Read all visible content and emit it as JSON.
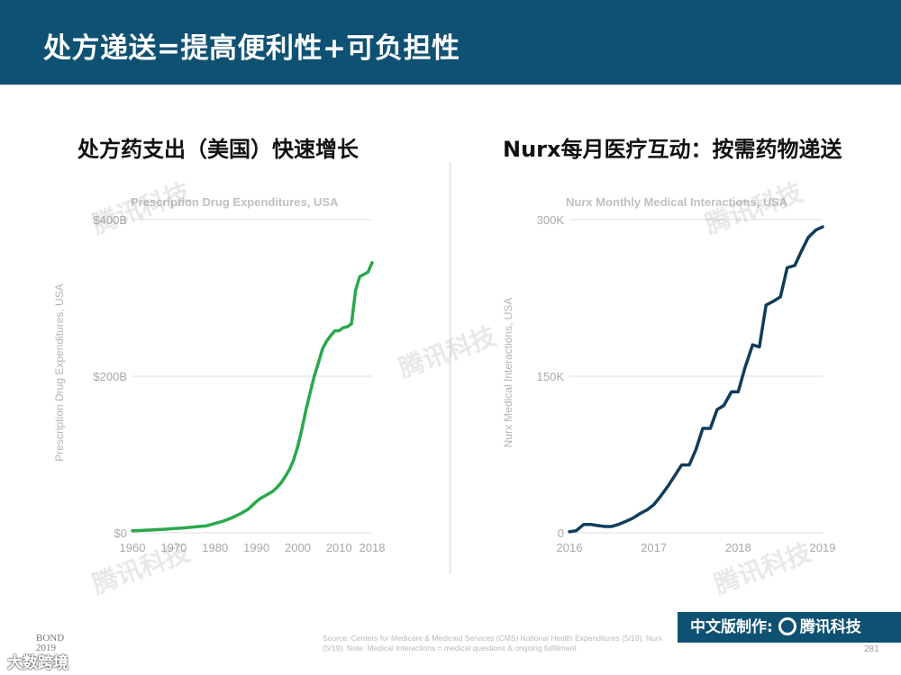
{
  "header": {
    "title": "处方递送=提高便利性+可负担性"
  },
  "panels": {
    "left_title": "处方药支出（美国）快速增长",
    "right_title": "Nurx每月医疗互动：按需药物递送"
  },
  "watermark": "腾讯科技",
  "footer": {
    "source": "Source: Centers for Medicare & Medicaid Services (CMS) National Health Expenditures (5/19), Nurx (5/19). Note: Medical Interactions = medical questions & ongoing fulfillment",
    "page": "281",
    "brand_prefix": "中文版制作:",
    "brand_name": "腾讯科技",
    "bond": "BOND",
    "bond_year": "2019",
    "bottom_logo": "大数跨境"
  },
  "colors": {
    "header": "#0f5173",
    "left_line": "#2aa84a",
    "right_line": "#0f3d5c",
    "grid": "#dcdcdc"
  },
  "chart_data": [
    {
      "type": "line",
      "title": "Prescription Drug Expenditures, USA",
      "ylabel": "Prescription Drug Expenditures, USA",
      "xlabel": "",
      "xlim": [
        1960,
        2018
      ],
      "ylim": [
        0,
        400
      ],
      "xticks": [
        "1960",
        "1970",
        "1980",
        "1990",
        "2000",
        "2010",
        "2018"
      ],
      "yticks": [
        "$0",
        "$200B",
        "$400B"
      ],
      "grid": true,
      "series": [
        {
          "x": [
            1960,
            1962,
            1964,
            1966,
            1968,
            1970,
            1972,
            1974,
            1976,
            1978,
            1980,
            1982,
            1984,
            1986,
            1988,
            1990,
            1991,
            1992,
            1993,
            1994,
            1995,
            1996,
            1997,
            1998,
            1999,
            2000,
            2001,
            2002,
            2003,
            2004,
            2005,
            2006,
            2007,
            2008,
            2009,
            2010,
            2011,
            2012,
            2013,
            2014,
            2015,
            2016,
            2017,
            2018
          ],
          "values": [
            2.7,
            3,
            3.5,
            4,
            4.6,
            5.5,
            6,
            7,
            8,
            9,
            12,
            15,
            19,
            24,
            30,
            40,
            44,
            47,
            50,
            53,
            58,
            64,
            72,
            81,
            93,
            110,
            132,
            157,
            179,
            200,
            217,
            235,
            245,
            252,
            258,
            258,
            262,
            263,
            267,
            310,
            327,
            330,
            333,
            345
          ]
        }
      ]
    },
    {
      "type": "line",
      "title": "Nurx Monthly Medical Interactions, USA",
      "ylabel": "Nurx Medical Interactions, USA",
      "xlabel": "",
      "xlim": [
        2016,
        2019
      ],
      "ylim": [
        0,
        300
      ],
      "xticks": [
        "2016",
        "2017",
        "2018",
        "2019"
      ],
      "yticks": [
        "0",
        "150K",
        "300K"
      ],
      "grid": true,
      "series": [
        {
          "x": [
            2016.0,
            2016.08,
            2016.17,
            2016.25,
            2016.33,
            2016.42,
            2016.5,
            2016.58,
            2016.67,
            2016.75,
            2016.83,
            2016.92,
            2017.0,
            2017.08,
            2017.17,
            2017.25,
            2017.33,
            2017.42,
            2017.5,
            2017.58,
            2017.67,
            2017.75,
            2017.83,
            2017.92,
            2018.0,
            2018.08,
            2018.17,
            2018.25,
            2018.33,
            2018.42,
            2018.5,
            2018.58,
            2018.67,
            2018.75,
            2018.83,
            2018.92,
            2019.0
          ],
          "values": [
            1,
            2,
            8,
            8,
            7,
            6,
            6,
            8,
            11,
            14,
            18,
            22,
            27,
            35,
            45,
            55,
            65,
            65,
            80,
            100,
            100,
            118,
            122,
            135,
            135,
            158,
            180,
            178,
            218,
            222,
            226,
            254,
            256,
            270,
            283,
            290,
            293
          ]
        }
      ]
    }
  ]
}
